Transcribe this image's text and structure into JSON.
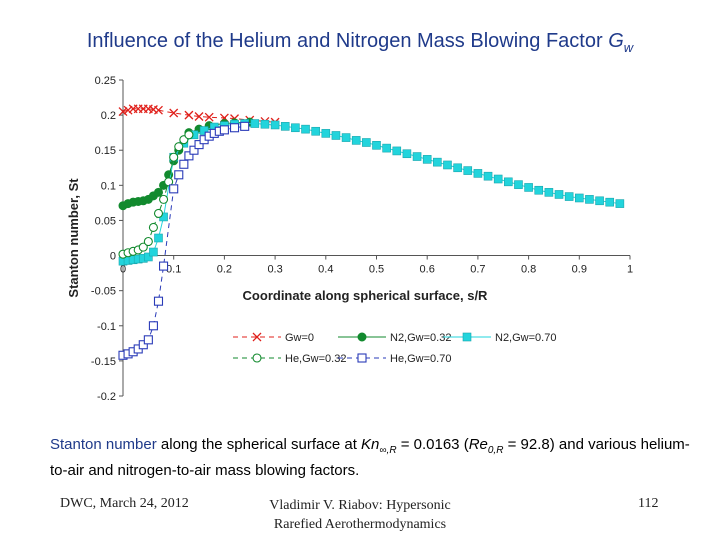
{
  "slide": {
    "title_prefix": "Influence of the Helium and Nitrogen Mass Blowing Factor ",
    "title_symbol": "G",
    "title_subscript": "w",
    "caption": {
      "highlight": "Stanton number",
      "text1": " along the spherical surface at ",
      "kn_symbol": "Kn",
      "kn_subscript": "∞,R",
      "text2": " = 0.0163 (",
      "re_symbol": "Re",
      "re_subscript": "0,R",
      "text3": " = 92.8) and various helium-to-air and nitrogen-to-air mass blowing factors."
    },
    "footer": {
      "left": "DWC, March 24, 2012",
      "middle_line1": "Vladimir V. Riabov: Hypersonic",
      "middle_line2": "Rarefied Aerothermodynamics",
      "right": "112"
    }
  },
  "chart_data": {
    "type": "line",
    "xlabel": "Coordinate along spherical surface, s/R",
    "ylabel": "Stanton number, St",
    "xlim": [
      0,
      1
    ],
    "ylim": [
      -0.2,
      0.25
    ],
    "x_ticks": [
      "0",
      "0.1",
      "0.2",
      "0.3",
      "0.4",
      "0.5",
      "0.6",
      "0.7",
      "0.8",
      "0.9",
      "1"
    ],
    "y_ticks": [
      "0.25",
      "0.2",
      "0.15",
      "0.1",
      "0.05",
      "0",
      "-0.05",
      "-0.1",
      "-0.15",
      "-0.2"
    ],
    "legend_position": "bottom-inside",
    "series": [
      {
        "name": "Gw=0",
        "color": "#e0201b",
        "marker": "x",
        "dash": "dashed",
        "x": [
          0,
          0.01,
          0.02,
          0.03,
          0.04,
          0.05,
          0.06,
          0.07,
          0.1,
          0.13,
          0.15,
          0.17,
          0.2,
          0.22,
          0.25,
          0.28,
          0.3
        ],
        "y": [
          0.205,
          0.207,
          0.209,
          0.209,
          0.209,
          0.209,
          0.208,
          0.207,
          0.203,
          0.2,
          0.198,
          0.197,
          0.196,
          0.195,
          0.193,
          0.191,
          0.19
        ]
      },
      {
        "name": "N2,Gw=0.32",
        "color": "#128a2e",
        "marker": "circle-filled",
        "dash": "solid",
        "x": [
          0,
          0.01,
          0.02,
          0.03,
          0.04,
          0.05,
          0.06,
          0.07,
          0.08,
          0.09,
          0.1,
          0.11,
          0.13,
          0.15,
          0.17,
          0.2,
          0.22,
          0.25
        ],
        "y": [
          0.071,
          0.074,
          0.076,
          0.077,
          0.078,
          0.08,
          0.085,
          0.09,
          0.1,
          0.115,
          0.135,
          0.15,
          0.175,
          0.18,
          0.185,
          0.188,
          0.189,
          0.19
        ]
      },
      {
        "name": "N2,Gw=0.70",
        "color": "#22d4dc",
        "marker": "square-filled",
        "dash": "solid",
        "x": [
          0,
          0.01,
          0.02,
          0.03,
          0.04,
          0.05,
          0.06,
          0.07,
          0.08,
          0.1,
          0.12,
          0.14,
          0.16,
          0.18,
          0.2,
          0.22,
          0.24,
          0.26,
          0.28,
          0.3,
          0.32,
          0.34,
          0.36,
          0.38,
          0.4,
          0.42,
          0.44,
          0.46,
          0.48,
          0.5,
          0.52,
          0.54,
          0.56,
          0.58,
          0.6,
          0.62,
          0.64,
          0.66,
          0.68,
          0.7,
          0.72,
          0.74,
          0.76,
          0.78,
          0.8,
          0.82,
          0.84,
          0.86,
          0.88,
          0.9,
          0.92,
          0.94,
          0.96,
          0.98
        ],
        "y": [
          -0.008,
          -0.007,
          -0.006,
          -0.005,
          -0.004,
          -0.002,
          0.005,
          0.025,
          0.055,
          0.14,
          0.16,
          0.172,
          0.178,
          0.183,
          0.185,
          0.187,
          0.188,
          0.188,
          0.187,
          0.186,
          0.184,
          0.182,
          0.18,
          0.177,
          0.174,
          0.171,
          0.168,
          0.164,
          0.161,
          0.157,
          0.153,
          0.149,
          0.145,
          0.141,
          0.137,
          0.133,
          0.129,
          0.125,
          0.121,
          0.117,
          0.113,
          0.109,
          0.105,
          0.101,
          0.097,
          0.093,
          0.09,
          0.087,
          0.084,
          0.082,
          0.08,
          0.078,
          0.076,
          0.074
        ]
      },
      {
        "name": "He,Gw=0.32",
        "color": "#128a2e",
        "marker": "circle-open",
        "dash": "dashed",
        "x": [
          0,
          0.01,
          0.02,
          0.03,
          0.04,
          0.05,
          0.06,
          0.07,
          0.08,
          0.09,
          0.1,
          0.11,
          0.12,
          0.13
        ],
        "y": [
          0.002,
          0.004,
          0.006,
          0.008,
          0.012,
          0.02,
          0.04,
          0.06,
          0.08,
          0.105,
          0.14,
          0.155,
          0.165,
          0.172
        ]
      },
      {
        "name": "He,Gw=0.70",
        "color": "#2a3bb8",
        "marker": "square-open",
        "dash": "dashed",
        "x": [
          0,
          0.01,
          0.02,
          0.03,
          0.04,
          0.05,
          0.06,
          0.07,
          0.08,
          0.1,
          0.11,
          0.12,
          0.13,
          0.14,
          0.15,
          0.16,
          0.17,
          0.18,
          0.19,
          0.2,
          0.22,
          0.24
        ],
        "y": [
          -0.142,
          -0.14,
          -0.137,
          -0.133,
          -0.127,
          -0.12,
          -0.1,
          -0.065,
          -0.015,
          0.095,
          0.115,
          0.13,
          0.142,
          0.15,
          0.158,
          0.165,
          0.17,
          0.174,
          0.177,
          0.179,
          0.182,
          0.184
        ]
      }
    ]
  }
}
